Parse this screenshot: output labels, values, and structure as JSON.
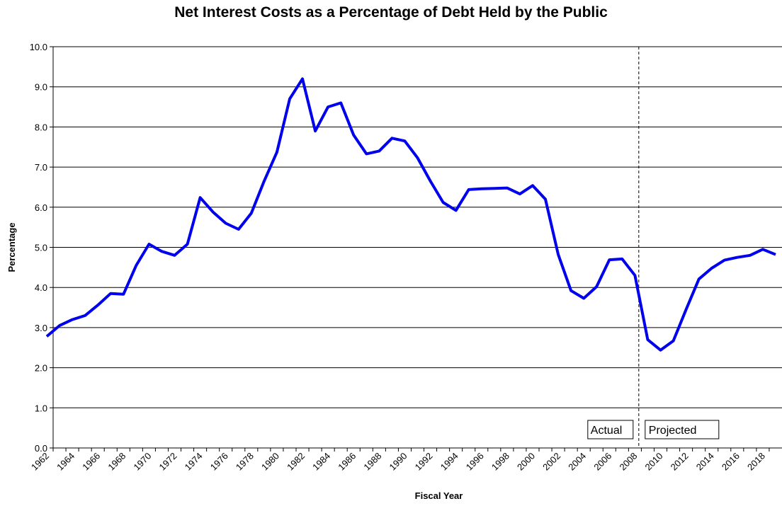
{
  "chart_data": {
    "type": "line",
    "title": "Net Interest Costs as a Percentage of Debt Held by the Public",
    "xlabel": "Fiscal Year",
    "ylabel": "Percentage",
    "ylim": [
      0,
      10
    ],
    "y_ticks": [
      "0.0",
      "1.0",
      "2.0",
      "3.0",
      "4.0",
      "5.0",
      "6.0",
      "7.0",
      "8.0",
      "9.0",
      "10.0"
    ],
    "x_tick_labels": [
      "1962",
      "1964",
      "1966",
      "1968",
      "1970",
      "1972",
      "1974",
      "1976",
      "1978",
      "1980",
      "1982",
      "1984",
      "1986",
      "1988",
      "1990",
      "1992",
      "1994",
      "1996",
      "1998",
      "2000",
      "2002",
      "2004",
      "2006",
      "2008",
      "2010",
      "2012",
      "2014",
      "2016",
      "2018"
    ],
    "grid": true,
    "color": "#0000ee",
    "series": [
      {
        "x": [
          1962,
          1963,
          1964,
          1965,
          1966,
          1967,
          1968,
          1969,
          1970,
          1971,
          1972,
          1973,
          1974,
          1975,
          1976,
          1977,
          1978,
          1979,
          1980,
          1981,
          1982,
          1983,
          1984,
          1985,
          1986,
          1987,
          1988,
          1989,
          1990,
          1991,
          1992,
          1993,
          1994,
          1995,
          1996,
          1997,
          1998,
          1999,
          2000,
          2001,
          2002,
          2003,
          2004,
          2005,
          2006,
          2007,
          2008,
          2009,
          2010,
          2011,
          2012,
          2013,
          2014,
          2015,
          2016,
          2017,
          2018,
          2019
        ],
        "values": [
          2.78,
          3.05,
          3.2,
          3.3,
          3.56,
          3.85,
          3.83,
          4.55,
          5.08,
          4.9,
          4.8,
          5.08,
          6.24,
          5.88,
          5.6,
          5.45,
          5.85,
          6.65,
          7.37,
          8.7,
          9.2,
          7.9,
          8.5,
          8.6,
          7.8,
          7.33,
          7.4,
          7.72,
          7.65,
          7.23,
          6.65,
          6.12,
          5.92,
          6.44,
          6.46,
          6.47,
          6.48,
          6.33,
          6.54,
          6.2,
          4.82,
          3.92,
          3.73,
          4.02,
          4.69,
          4.71,
          4.3,
          2.7,
          2.44,
          2.67,
          3.45,
          4.21,
          4.48,
          4.68,
          4.75,
          4.8,
          4.95,
          4.82
        ]
      }
    ],
    "annotations": {
      "divider_year": 2008.3,
      "actual_label": "Actual",
      "projected_label": "Projected"
    }
  }
}
